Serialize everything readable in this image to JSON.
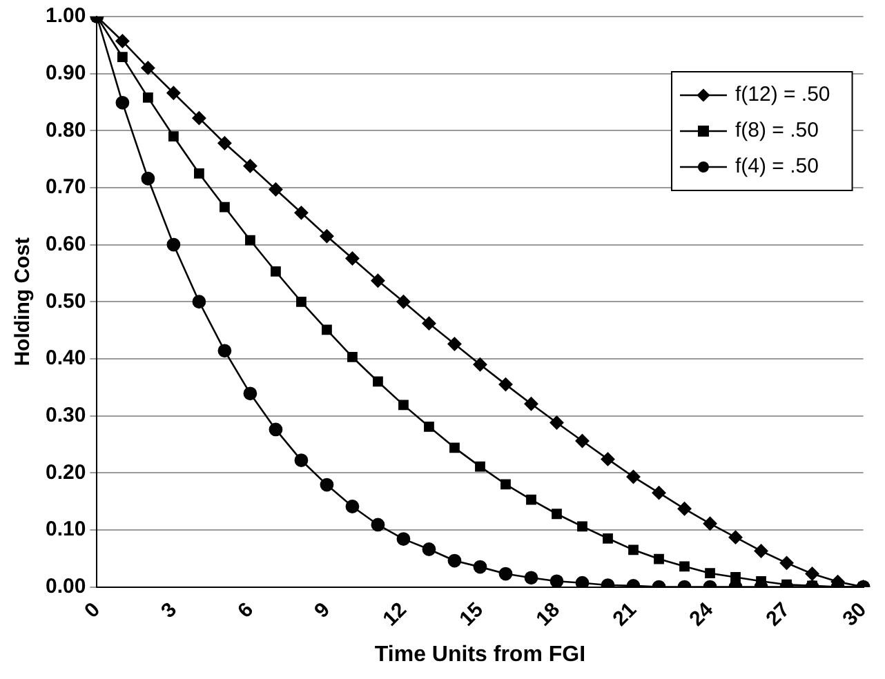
{
  "chart_data": {
    "type": "line",
    "xlabel": "Time Units from FGI",
    "ylabel": "Holding Cost",
    "categories": [
      "0",
      null,
      null,
      "3",
      null,
      null,
      "6",
      null,
      null,
      "9",
      null,
      null,
      "12",
      null,
      null,
      "15",
      null,
      null,
      "18",
      null,
      null,
      "21",
      null,
      null,
      "24",
      null,
      null,
      "27",
      null,
      null,
      "30"
    ],
    "series": [
      {
        "name": "f(12) = .50",
        "color": "#020202",
        "marker": "diamond",
        "values": [
          1,
          0.957,
          0.91,
          0.866,
          0.822,
          0.778,
          0.738,
          0.697,
          0.656,
          0.615,
          0.576,
          0.537,
          0.5,
          0.462,
          0.426,
          0.39,
          0.355,
          0.321,
          0.288,
          0.256,
          0.224,
          0.193,
          0.165,
          0.137,
          0.111,
          0.087,
          0.063,
          0.042,
          0.023,
          0.009,
          0
        ]
      },
      {
        "name": "f(8) = .50",
        "color": "#000000",
        "marker": "square",
        "values": [
          1,
          0.929,
          0.858,
          0.79,
          0.725,
          0.666,
          0.608,
          0.553,
          0.5,
          0.451,
          0.403,
          0.36,
          0.319,
          0.281,
          0.244,
          0.211,
          0.18,
          0.153,
          0.128,
          0.106,
          0.085,
          0.065,
          0.049,
          0.036,
          0.024,
          0.017,
          0.01,
          0.004,
          0.002,
          0,
          0
        ]
      },
      {
        "name": "f(4) = .50",
        "color": "#040404",
        "marker": "circle",
        "values": [
          1,
          0.849,
          0.716,
          0.6,
          0.5,
          0.414,
          0.339,
          0.276,
          0.222,
          0.179,
          0.141,
          0.109,
          0.084,
          0.066,
          0.046,
          0.035,
          0.023,
          0.016,
          0.01,
          0.007,
          0.003,
          0.002,
          0,
          0,
          0,
          0,
          0,
          0,
          0,
          0,
          0
        ]
      }
    ],
    "ylim": [
      0,
      1
    ],
    "yticks": [
      {
        "value": 0,
        "label": "0.00"
      },
      {
        "value": 0.1,
        "label": "0.10"
      },
      {
        "value": 0.2,
        "label": "0.20"
      },
      {
        "value": 0.3,
        "label": "0.30"
      },
      {
        "value": 0.4,
        "label": "0.40"
      },
      {
        "value": 0.5,
        "label": "0.50"
      },
      {
        "value": 0.6,
        "label": "0.60"
      },
      {
        "value": 0.7,
        "label": "0.70"
      },
      {
        "value": 0.8,
        "label": "0.80"
      },
      {
        "value": 0.9,
        "label": "0.90"
      },
      {
        "value": 1,
        "label": "1.00"
      }
    ],
    "grid": "y",
    "legend": "top right",
    "line_style": "solid"
  }
}
